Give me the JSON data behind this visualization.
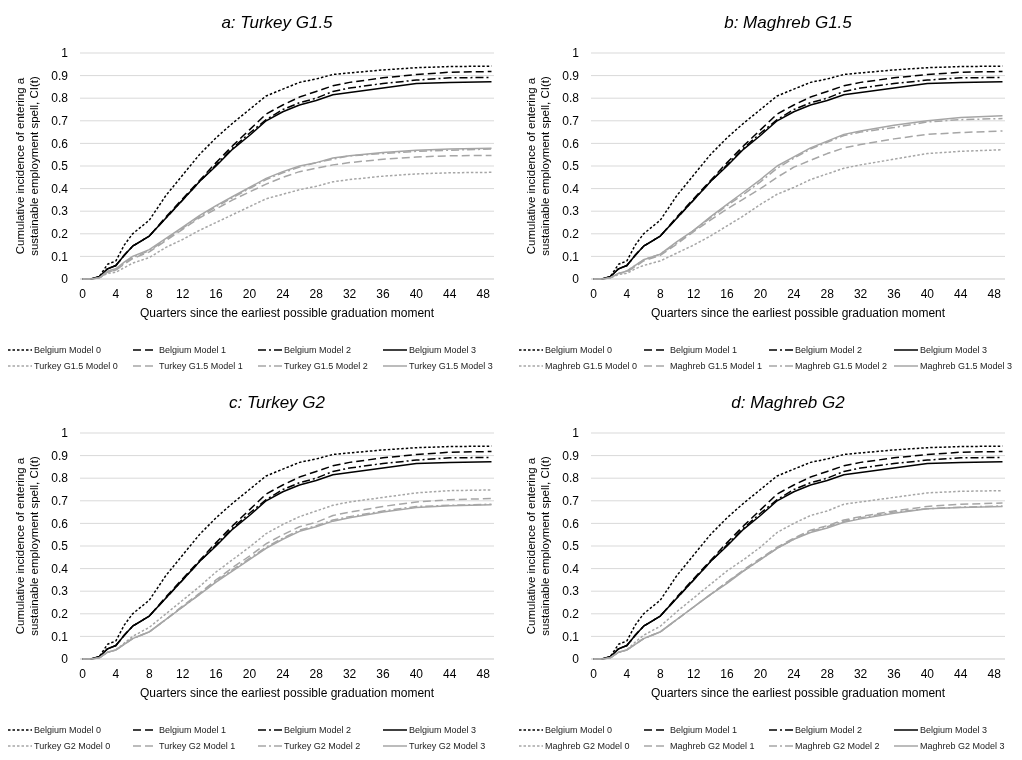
{
  "chart_data": [
    {
      "type": "line",
      "title": "a: Turkey G1.5",
      "xlabel": "Quarters since the earliest possible graduation moment",
      "ylabel": "Cumulative incidence of entering a\nsustainable employment spell, CI(t)",
      "x": [
        0,
        1,
        2,
        3,
        4,
        5,
        6,
        8,
        10,
        12,
        14,
        16,
        18,
        20,
        22,
        24,
        26,
        28,
        30,
        32,
        36,
        40,
        44,
        49
      ],
      "xlim": [
        -0.3,
        49.3
      ],
      "xticks": [
        0,
        4,
        8,
        12,
        16,
        20,
        24,
        28,
        32,
        36,
        40,
        44,
        48
      ],
      "ylim": [
        0,
        1
      ],
      "yticks": [
        0,
        0.1,
        0.2,
        0.3,
        0.4,
        0.5,
        0.6,
        0.7,
        0.8,
        0.9,
        1
      ],
      "grid": "y",
      "legend": "bottom",
      "series": [
        {
          "name": "Belgium Model 0",
          "color": "#000000",
          "line_style": "dotted",
          "values": [
            0,
            0,
            0.01,
            0.065,
            0.08,
            0.15,
            0.2,
            0.26,
            0.37,
            0.46,
            0.55,
            0.625,
            0.69,
            0.75,
            0.81,
            0.84,
            0.87,
            0.885,
            0.905,
            0.912,
            0.925,
            0.935,
            0.94,
            0.942
          ]
        },
        {
          "name": "Belgium Model 1",
          "color": "#000000",
          "line_style": "dashed",
          "values": [
            0,
            0,
            0.01,
            0.045,
            0.06,
            0.105,
            0.145,
            0.19,
            0.275,
            0.355,
            0.435,
            0.515,
            0.59,
            0.66,
            0.73,
            0.77,
            0.805,
            0.83,
            0.855,
            0.87,
            0.89,
            0.905,
            0.915,
            0.918
          ]
        },
        {
          "name": "Belgium Model 2",
          "color": "#000000",
          "line_style": "dashdot",
          "values": [
            0,
            0,
            0.01,
            0.045,
            0.06,
            0.105,
            0.145,
            0.19,
            0.27,
            0.35,
            0.43,
            0.505,
            0.58,
            0.645,
            0.705,
            0.75,
            0.78,
            0.8,
            0.83,
            0.845,
            0.865,
            0.88,
            0.89,
            0.892
          ]
        },
        {
          "name": "Belgium Model 3",
          "color": "#000000",
          "line_style": "solid",
          "values": [
            0,
            0,
            0.01,
            0.045,
            0.06,
            0.105,
            0.145,
            0.19,
            0.27,
            0.35,
            0.43,
            0.5,
            0.575,
            0.635,
            0.7,
            0.74,
            0.77,
            0.79,
            0.815,
            0.825,
            0.845,
            0.865,
            0.87,
            0.873
          ]
        },
        {
          "name": "Turkey G1.5 Model 0",
          "color": "#a6a6a6",
          "line_style": "dotted",
          "values": [
            0,
            0,
            0.005,
            0.025,
            0.03,
            0.05,
            0.07,
            0.095,
            0.14,
            0.175,
            0.215,
            0.25,
            0.285,
            0.32,
            0.355,
            0.375,
            0.395,
            0.41,
            0.43,
            0.44,
            0.455,
            0.465,
            0.47,
            0.472
          ]
        },
        {
          "name": "Turkey G1.5 Model 1",
          "color": "#a6a6a6",
          "line_style": "dashed",
          "values": [
            0,
            0,
            0.005,
            0.03,
            0.04,
            0.065,
            0.09,
            0.12,
            0.17,
            0.22,
            0.27,
            0.31,
            0.35,
            0.385,
            0.42,
            0.45,
            0.475,
            0.49,
            0.505,
            0.515,
            0.53,
            0.54,
            0.545,
            0.547
          ]
        },
        {
          "name": "Turkey G1.5 Model 2",
          "color": "#a6a6a6",
          "line_style": "dashdot",
          "values": [
            0,
            0,
            0.005,
            0.03,
            0.04,
            0.07,
            0.095,
            0.125,
            0.175,
            0.225,
            0.275,
            0.32,
            0.36,
            0.4,
            0.44,
            0.47,
            0.495,
            0.515,
            0.53,
            0.545,
            0.555,
            0.565,
            0.57,
            0.575
          ]
        },
        {
          "name": "Turkey G1.5 Model 3",
          "color": "#a6a6a6",
          "line_style": "solid",
          "values": [
            0,
            0,
            0.005,
            0.035,
            0.045,
            0.075,
            0.1,
            0.13,
            0.18,
            0.23,
            0.28,
            0.325,
            0.365,
            0.405,
            0.445,
            0.475,
            0.5,
            0.515,
            0.535,
            0.545,
            0.56,
            0.57,
            0.575,
            0.578
          ]
        }
      ]
    },
    {
      "type": "line",
      "title": "b: Maghreb G1.5",
      "xlabel": "Quarters since the earliest possible graduation moment",
      "ylabel": "Cumulative incidence of entering a\nsustainable employment spell, CI(t)",
      "x": [
        0,
        1,
        2,
        3,
        4,
        5,
        6,
        8,
        10,
        12,
        14,
        16,
        18,
        20,
        22,
        24,
        26,
        28,
        30,
        32,
        36,
        40,
        44,
        49
      ],
      "xlim": [
        -0.3,
        49.3
      ],
      "xticks": [
        0,
        4,
        8,
        12,
        16,
        20,
        24,
        28,
        32,
        36,
        40,
        44,
        48
      ],
      "ylim": [
        0,
        1
      ],
      "yticks": [
        0,
        0.1,
        0.2,
        0.3,
        0.4,
        0.5,
        0.6,
        0.7,
        0.8,
        0.9,
        1
      ],
      "grid": "y",
      "legend": "bottom",
      "series": [
        {
          "name": "Belgium Model 0",
          "color": "#000000",
          "line_style": "dotted",
          "values": [
            0,
            0,
            0.01,
            0.065,
            0.08,
            0.15,
            0.2,
            0.26,
            0.37,
            0.46,
            0.55,
            0.625,
            0.69,
            0.75,
            0.81,
            0.84,
            0.87,
            0.885,
            0.905,
            0.912,
            0.925,
            0.935,
            0.94,
            0.942
          ]
        },
        {
          "name": "Belgium Model 1",
          "color": "#000000",
          "line_style": "dashed",
          "values": [
            0,
            0,
            0.01,
            0.045,
            0.06,
            0.105,
            0.145,
            0.19,
            0.275,
            0.355,
            0.435,
            0.515,
            0.59,
            0.66,
            0.73,
            0.77,
            0.805,
            0.83,
            0.855,
            0.87,
            0.89,
            0.905,
            0.915,
            0.918
          ]
        },
        {
          "name": "Belgium Model 2",
          "color": "#000000",
          "line_style": "dashdot",
          "values": [
            0,
            0,
            0.01,
            0.045,
            0.06,
            0.105,
            0.145,
            0.19,
            0.27,
            0.35,
            0.43,
            0.505,
            0.58,
            0.645,
            0.705,
            0.75,
            0.78,
            0.8,
            0.83,
            0.845,
            0.865,
            0.88,
            0.89,
            0.892
          ]
        },
        {
          "name": "Belgium Model 3",
          "color": "#000000",
          "line_style": "solid",
          "values": [
            0,
            0,
            0.01,
            0.045,
            0.06,
            0.105,
            0.145,
            0.19,
            0.27,
            0.35,
            0.43,
            0.5,
            0.575,
            0.635,
            0.7,
            0.74,
            0.77,
            0.79,
            0.815,
            0.825,
            0.845,
            0.865,
            0.87,
            0.873
          ]
        },
        {
          "name": "Maghreb G1.5 Model 0",
          "color": "#a6a6a6",
          "line_style": "dotted",
          "values": [
            0,
            0,
            0.005,
            0.02,
            0.025,
            0.045,
            0.06,
            0.08,
            0.115,
            0.15,
            0.19,
            0.235,
            0.28,
            0.33,
            0.375,
            0.405,
            0.44,
            0.465,
            0.49,
            0.505,
            0.53,
            0.555,
            0.565,
            0.572
          ]
        },
        {
          "name": "Maghreb G1.5 Model 1",
          "color": "#a6a6a6",
          "line_style": "dashed",
          "values": [
            0,
            0,
            0.005,
            0.025,
            0.03,
            0.055,
            0.08,
            0.105,
            0.155,
            0.21,
            0.26,
            0.31,
            0.355,
            0.4,
            0.45,
            0.495,
            0.525,
            0.555,
            0.58,
            0.595,
            0.62,
            0.64,
            0.648,
            0.655
          ]
        },
        {
          "name": "Maghreb G1.5 Model 2",
          "color": "#a6a6a6",
          "line_style": "dashdot",
          "values": [
            0,
            0,
            0.005,
            0.025,
            0.035,
            0.06,
            0.085,
            0.11,
            0.16,
            0.215,
            0.27,
            0.325,
            0.375,
            0.43,
            0.49,
            0.535,
            0.575,
            0.605,
            0.635,
            0.65,
            0.67,
            0.695,
            0.705,
            0.71
          ]
        },
        {
          "name": "Maghreb G1.5 Model 3",
          "color": "#a6a6a6",
          "line_style": "solid",
          "values": [
            0,
            0,
            0.005,
            0.025,
            0.035,
            0.06,
            0.085,
            0.11,
            0.165,
            0.215,
            0.275,
            0.33,
            0.385,
            0.44,
            0.5,
            0.54,
            0.58,
            0.61,
            0.64,
            0.655,
            0.68,
            0.7,
            0.715,
            0.722
          ]
        }
      ]
    },
    {
      "type": "line",
      "title": "c: Turkey G2",
      "xlabel": "Quarters since the earliest possible graduation moment",
      "ylabel": "Cumulative incidence of entering a\nsustainable employment spell, CI(t)",
      "x": [
        0,
        1,
        2,
        3,
        4,
        5,
        6,
        8,
        10,
        12,
        14,
        16,
        18,
        20,
        22,
        24,
        26,
        28,
        30,
        32,
        36,
        40,
        44,
        49
      ],
      "xlim": [
        -0.3,
        49.3
      ],
      "xticks": [
        0,
        4,
        8,
        12,
        16,
        20,
        24,
        28,
        32,
        36,
        40,
        44,
        48
      ],
      "ylim": [
        0,
        1
      ],
      "yticks": [
        0,
        0.1,
        0.2,
        0.3,
        0.4,
        0.5,
        0.6,
        0.7,
        0.8,
        0.9,
        1
      ],
      "grid": "y",
      "legend": "bottom",
      "series": [
        {
          "name": "Belgium Model 0",
          "color": "#000000",
          "line_style": "dotted",
          "values": [
            0,
            0,
            0.01,
            0.065,
            0.08,
            0.15,
            0.2,
            0.26,
            0.37,
            0.46,
            0.55,
            0.625,
            0.69,
            0.75,
            0.81,
            0.84,
            0.87,
            0.885,
            0.905,
            0.912,
            0.925,
            0.935,
            0.94,
            0.942
          ]
        },
        {
          "name": "Belgium Model 1",
          "color": "#000000",
          "line_style": "dashed",
          "values": [
            0,
            0,
            0.01,
            0.045,
            0.06,
            0.105,
            0.145,
            0.19,
            0.275,
            0.355,
            0.435,
            0.515,
            0.59,
            0.66,
            0.73,
            0.77,
            0.805,
            0.83,
            0.855,
            0.87,
            0.89,
            0.905,
            0.915,
            0.918
          ]
        },
        {
          "name": "Belgium Model 2",
          "color": "#000000",
          "line_style": "dashdot",
          "values": [
            0,
            0,
            0.01,
            0.045,
            0.06,
            0.105,
            0.145,
            0.19,
            0.27,
            0.35,
            0.43,
            0.505,
            0.58,
            0.645,
            0.705,
            0.75,
            0.78,
            0.8,
            0.83,
            0.845,
            0.865,
            0.88,
            0.89,
            0.892
          ]
        },
        {
          "name": "Belgium Model 3",
          "color": "#000000",
          "line_style": "solid",
          "values": [
            0,
            0,
            0.01,
            0.045,
            0.06,
            0.105,
            0.145,
            0.19,
            0.27,
            0.35,
            0.43,
            0.5,
            0.575,
            0.635,
            0.7,
            0.74,
            0.77,
            0.79,
            0.815,
            0.825,
            0.845,
            0.865,
            0.87,
            0.873
          ]
        },
        {
          "name": "Turkey G2 Model 0",
          "color": "#a6a6a6",
          "line_style": "dotted",
          "values": [
            0,
            0,
            0.005,
            0.03,
            0.04,
            0.07,
            0.1,
            0.14,
            0.2,
            0.26,
            0.32,
            0.385,
            0.44,
            0.495,
            0.555,
            0.595,
            0.63,
            0.655,
            0.68,
            0.695,
            0.715,
            0.735,
            0.745,
            0.748
          ]
        },
        {
          "name": "Turkey G2 Model 1",
          "color": "#a6a6a6",
          "line_style": "dashed",
          "values": [
            0,
            0,
            0.005,
            0.03,
            0.04,
            0.065,
            0.09,
            0.12,
            0.175,
            0.235,
            0.29,
            0.35,
            0.405,
            0.455,
            0.51,
            0.55,
            0.585,
            0.605,
            0.635,
            0.65,
            0.675,
            0.695,
            0.705,
            0.71
          ]
        },
        {
          "name": "Turkey G2 Model 2",
          "color": "#a6a6a6",
          "line_style": "dashdot",
          "values": [
            0,
            0,
            0.005,
            0.03,
            0.04,
            0.065,
            0.09,
            0.12,
            0.175,
            0.23,
            0.285,
            0.345,
            0.395,
            0.445,
            0.495,
            0.535,
            0.57,
            0.59,
            0.615,
            0.63,
            0.655,
            0.675,
            0.68,
            0.685
          ]
        },
        {
          "name": "Turkey G2 Model 3",
          "color": "#a6a6a6",
          "line_style": "solid",
          "values": [
            0,
            0,
            0.005,
            0.03,
            0.04,
            0.065,
            0.09,
            0.12,
            0.175,
            0.23,
            0.285,
            0.34,
            0.39,
            0.44,
            0.49,
            0.53,
            0.565,
            0.585,
            0.61,
            0.625,
            0.65,
            0.67,
            0.678,
            0.683
          ]
        }
      ]
    },
    {
      "type": "line",
      "title": "d: Maghreb G2",
      "xlabel": "Quarters since the earliest possible graduation moment",
      "ylabel": "Cumulative incidence of entering a\nsustainable employment spell, CI(t)",
      "x": [
        0,
        1,
        2,
        3,
        4,
        5,
        6,
        8,
        10,
        12,
        14,
        16,
        18,
        20,
        22,
        24,
        26,
        28,
        30,
        32,
        36,
        40,
        44,
        49
      ],
      "xlim": [
        -0.3,
        49.3
      ],
      "xticks": [
        0,
        4,
        8,
        12,
        16,
        20,
        24,
        28,
        32,
        36,
        40,
        44,
        48
      ],
      "ylim": [
        0,
        1
      ],
      "yticks": [
        0,
        0.1,
        0.2,
        0.3,
        0.4,
        0.5,
        0.6,
        0.7,
        0.8,
        0.9,
        1
      ],
      "grid": "y",
      "legend": "bottom",
      "series": [
        {
          "name": "Belgium Model 0",
          "color": "#000000",
          "line_style": "dotted",
          "values": [
            0,
            0,
            0.01,
            0.065,
            0.08,
            0.15,
            0.2,
            0.26,
            0.37,
            0.46,
            0.55,
            0.625,
            0.69,
            0.75,
            0.81,
            0.84,
            0.87,
            0.885,
            0.905,
            0.912,
            0.925,
            0.935,
            0.94,
            0.942
          ]
        },
        {
          "name": "Belgium Model 1",
          "color": "#000000",
          "line_style": "dashed",
          "values": [
            0,
            0,
            0.01,
            0.045,
            0.06,
            0.105,
            0.145,
            0.19,
            0.275,
            0.355,
            0.435,
            0.515,
            0.59,
            0.66,
            0.73,
            0.77,
            0.805,
            0.83,
            0.855,
            0.87,
            0.89,
            0.905,
            0.915,
            0.918
          ]
        },
        {
          "name": "Belgium Model 2",
          "color": "#000000",
          "line_style": "dashdot",
          "values": [
            0,
            0,
            0.01,
            0.045,
            0.06,
            0.105,
            0.145,
            0.19,
            0.27,
            0.35,
            0.43,
            0.505,
            0.58,
            0.645,
            0.705,
            0.75,
            0.78,
            0.8,
            0.83,
            0.845,
            0.865,
            0.88,
            0.89,
            0.892
          ]
        },
        {
          "name": "Belgium Model 3",
          "color": "#000000",
          "line_style": "solid",
          "values": [
            0,
            0,
            0.01,
            0.045,
            0.06,
            0.105,
            0.145,
            0.19,
            0.27,
            0.35,
            0.43,
            0.5,
            0.575,
            0.635,
            0.7,
            0.74,
            0.77,
            0.79,
            0.815,
            0.825,
            0.845,
            0.865,
            0.87,
            0.873
          ]
        },
        {
          "name": "Maghreb G2 Model 0",
          "color": "#a6a6a6",
          "line_style": "dotted",
          "values": [
            0,
            0,
            0.005,
            0.03,
            0.04,
            0.075,
            0.105,
            0.145,
            0.21,
            0.27,
            0.33,
            0.39,
            0.44,
            0.495,
            0.56,
            0.6,
            0.635,
            0.655,
            0.685,
            0.695,
            0.715,
            0.735,
            0.742,
            0.745
          ]
        },
        {
          "name": "Maghreb G2 Model 1",
          "color": "#a6a6a6",
          "line_style": "dashed",
          "values": [
            0,
            0,
            0.005,
            0.03,
            0.04,
            0.065,
            0.09,
            0.12,
            0.175,
            0.23,
            0.285,
            0.34,
            0.395,
            0.445,
            0.495,
            0.535,
            0.57,
            0.59,
            0.615,
            0.63,
            0.655,
            0.675,
            0.685,
            0.69
          ]
        },
        {
          "name": "Maghreb G2 Model 2",
          "color": "#a6a6a6",
          "line_style": "dashdot",
          "values": [
            0,
            0,
            0.005,
            0.03,
            0.04,
            0.065,
            0.09,
            0.12,
            0.175,
            0.23,
            0.285,
            0.34,
            0.39,
            0.44,
            0.49,
            0.53,
            0.565,
            0.585,
            0.61,
            0.625,
            0.65,
            0.665,
            0.672,
            0.677
          ]
        },
        {
          "name": "Maghreb G2 Model 3",
          "color": "#a6a6a6",
          "line_style": "solid",
          "values": [
            0,
            0,
            0.005,
            0.03,
            0.04,
            0.065,
            0.09,
            0.12,
            0.175,
            0.23,
            0.285,
            0.335,
            0.39,
            0.44,
            0.49,
            0.53,
            0.56,
            0.58,
            0.605,
            0.62,
            0.645,
            0.665,
            0.67,
            0.675
          ]
        }
      ]
    }
  ]
}
